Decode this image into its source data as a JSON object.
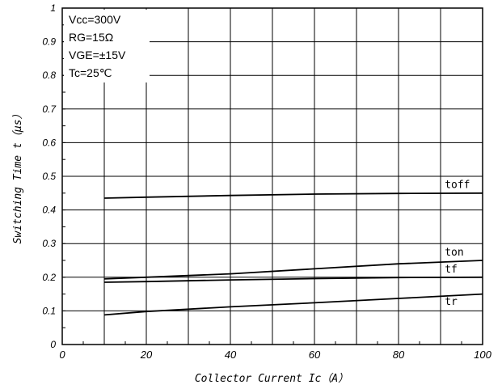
{
  "chart_data": {
    "type": "line",
    "title": "",
    "xlabel": "Collector Current Ic（A）",
    "ylabel": "Switching Time t（μs）",
    "xlim": [
      0,
      100
    ],
    "ylim": [
      0,
      1
    ],
    "x_ticks": [
      0,
      20,
      40,
      60,
      80,
      100
    ],
    "x_tick_labels": [
      "0",
      "20",
      "40",
      "60",
      "80",
      "100"
    ],
    "y_ticks": [
      0,
      0.1,
      0.2,
      0.3,
      0.4,
      0.5,
      0.6,
      0.7,
      0.8,
      0.9,
      1
    ],
    "y_tick_labels": [
      "0",
      "0.1",
      "0.2",
      "0.3",
      "0.4",
      "0.5",
      "0.6",
      "0.7",
      "0.8",
      "0.9",
      "1"
    ],
    "grid": true,
    "conditions": [
      "Vcc=300V",
      "RG=15Ω",
      "VGE=±15V",
      "Tc=25℃"
    ],
    "series": [
      {
        "name": "toff",
        "x": [
          10,
          20,
          40,
          60,
          80,
          100
        ],
        "y": [
          0.435,
          0.438,
          0.443,
          0.447,
          0.449,
          0.45
        ]
      },
      {
        "name": "ton",
        "x": [
          10,
          20,
          40,
          60,
          80,
          100
        ],
        "y": [
          0.195,
          0.2,
          0.21,
          0.225,
          0.24,
          0.25
        ]
      },
      {
        "name": "tf",
        "x": [
          10,
          20,
          40,
          60,
          80,
          100
        ],
        "y": [
          0.185,
          0.187,
          0.192,
          0.196,
          0.199,
          0.2
        ]
      },
      {
        "name": "tr",
        "x": [
          10,
          20,
          40,
          60,
          80,
          100
        ],
        "y": [
          0.088,
          0.098,
          0.112,
          0.124,
          0.137,
          0.15
        ]
      }
    ]
  }
}
